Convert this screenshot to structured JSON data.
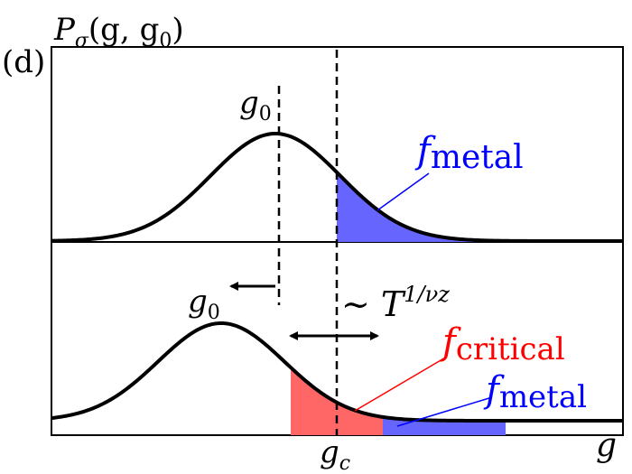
{
  "panel_label": "(d)",
  "y_axis_label": {
    "main": "P",
    "sub": "σ",
    "args": "(g, g",
    "args_sub": "0",
    "args_close": ")"
  },
  "x_axis_label": "g",
  "top_panel": {
    "g0_label": {
      "main": "g",
      "sub": "0"
    },
    "fmetal_label": {
      "main": "f",
      "sub": "metal"
    },
    "fill_color_metal": "#6666ff"
  },
  "bottom_panel": {
    "g0_label": {
      "main": "g",
      "sub": "0"
    },
    "scaling_label": {
      "prefix": "∼ ",
      "main": "T",
      "sup": "1/νz"
    },
    "fcritical_label": {
      "main": "f",
      "sub": "critical"
    },
    "fmetal_label": {
      "main": "f",
      "sub": "metal"
    },
    "fill_color_critical": "#ff6666",
    "fill_color_metal": "#6666ff",
    "critical_label_color": "#ff0000",
    "metal_label_color": "#0000ff"
  },
  "gc_label": {
    "main": "g",
    "sub": "c"
  }
}
